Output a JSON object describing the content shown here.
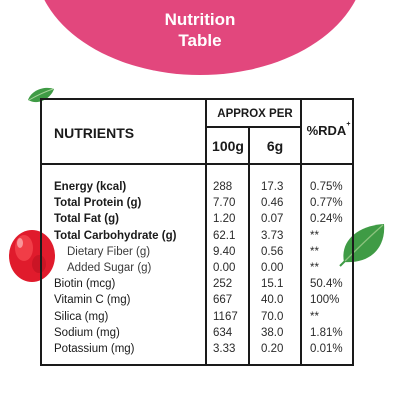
{
  "banner": {
    "title_line1": "Nutrition",
    "title_line2": "Table",
    "color": "#e2477d"
  },
  "table": {
    "header": {
      "nutrients": "NUTRIENTS",
      "approx_per": "APPROX PER",
      "col_100g": "100g",
      "col_6g": "6g",
      "rda": "%RDA",
      "rda_mark": "+"
    },
    "rows": [
      {
        "name": "Energy (kcal)",
        "v100": "288",
        "v6": "17.3",
        "rda": "0.75%"
      },
      {
        "name": "Total Protein (g)",
        "v100": "7.70",
        "v6": "0.46",
        "rda": "0.77%"
      },
      {
        "name": "Total Fat (g)",
        "v100": "1.20",
        "v6": "0.07",
        "rda": "0.24%"
      },
      {
        "name": "Total Carbohydrate (g)",
        "v100": "62.1",
        "v6": "3.73",
        "rda": "**"
      },
      {
        "name": "Dietary Fiber (g)",
        "v100": "9.40",
        "v6": "0.56",
        "rda": "**"
      },
      {
        "name": "Added Sugar (g)",
        "v100": "0.00",
        "v6": "0.00",
        "rda": "**"
      },
      {
        "name": "Biotin (mcg)",
        "v100": "252",
        "v6": "15.1",
        "rda": "50.4%"
      },
      {
        "name": "Vitamin C (mg)",
        "v100": "667",
        "v6": "40.0",
        "rda": "100%"
      },
      {
        "name": "Silica (mg)",
        "v100": "1167",
        "v6": "70.0",
        "rda": "**"
      },
      {
        "name": "Sodium (mg)",
        "v100": "634",
        "v6": "38.0",
        "rda": "1.81%"
      },
      {
        "name": "Potassium (mg)",
        "v100": "3.33",
        "v6": "0.20",
        "rda": "0.01%"
      }
    ]
  },
  "decorations": {
    "leaf_color": "#3f9b45",
    "berry_color": "#e01b2c",
    "icons": [
      "leaf-icon",
      "berry-icon"
    ]
  }
}
